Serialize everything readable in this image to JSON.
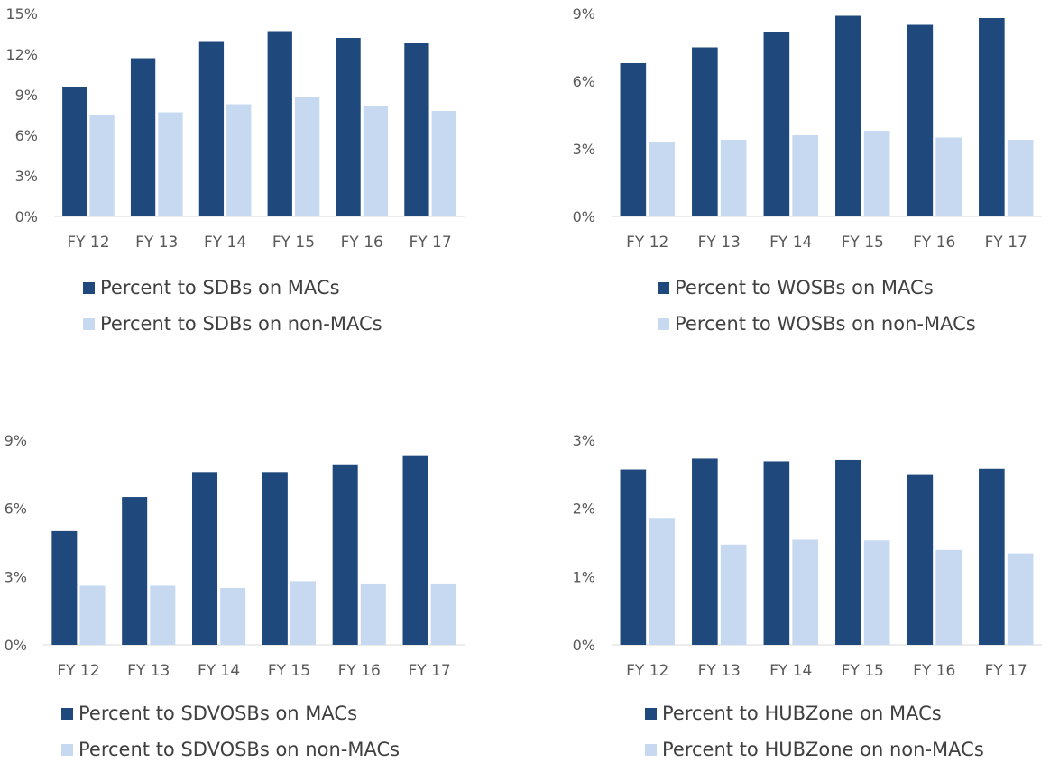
{
  "colors": {
    "macs": "#1f497d",
    "non_macs": "#c6d9f1",
    "axis": "#d9d9d9"
  },
  "chart_data": [
    {
      "type": "bar",
      "categories": [
        "FY 12",
        "FY 13",
        "FY 14",
        "FY 15",
        "FY 16",
        "FY 17"
      ],
      "ylim": [
        0,
        15
      ],
      "yticks": [
        "0%",
        "3%",
        "6%",
        "9%",
        "12%",
        "15%"
      ],
      "series": [
        {
          "name": "Percent to SDBs on MACs",
          "values": [
            9.6,
            11.7,
            12.9,
            13.7,
            13.2,
            12.8
          ]
        },
        {
          "name": "Percent to SDBs on non-MACs",
          "values": [
            7.5,
            7.7,
            8.3,
            8.8,
            8.2,
            7.8
          ]
        }
      ],
      "title": "",
      "xlabel": "",
      "ylabel": "",
      "grid": false,
      "legend": "bottom"
    },
    {
      "type": "bar",
      "categories": [
        "FY 12",
        "FY 13",
        "FY 14",
        "FY 15",
        "FY 16",
        "FY 17"
      ],
      "ylim": [
        0,
        9
      ],
      "yticks": [
        "0%",
        "3%",
        "6%",
        "9%"
      ],
      "series": [
        {
          "name": "Percent to WOSBs on MACs",
          "values": [
            6.8,
            7.5,
            8.2,
            8.9,
            8.5,
            8.8
          ]
        },
        {
          "name": "Percent to WOSBs on non-MACs",
          "values": [
            3.3,
            3.4,
            3.6,
            3.8,
            3.5,
            3.4
          ]
        }
      ],
      "title": "",
      "xlabel": "",
      "ylabel": "",
      "grid": false,
      "legend": "bottom"
    },
    {
      "type": "bar",
      "categories": [
        "FY 12",
        "FY 13",
        "FY 14",
        "FY 15",
        "FY 16",
        "FY 17"
      ],
      "ylim": [
        0,
        9
      ],
      "yticks": [
        "0%",
        "3%",
        "6%",
        "9%"
      ],
      "series": [
        {
          "name": "Percent to SDVOSBs on MACs",
          "values": [
            5.0,
            6.5,
            7.6,
            7.6,
            7.9,
            8.3
          ]
        },
        {
          "name": "Percent to SDVOSBs on non-MACs",
          "values": [
            2.6,
            2.6,
            2.5,
            2.8,
            2.7,
            2.7
          ]
        }
      ],
      "title": "",
      "xlabel": "",
      "ylabel": "",
      "grid": false,
      "legend": "bottom"
    },
    {
      "type": "bar",
      "categories": [
        "FY 12",
        "FY 13",
        "FY 14",
        "FY 15",
        "FY 16",
        "FY 17"
      ],
      "ylim": [
        0,
        3
      ],
      "yticks": [
        "0%",
        "1%",
        "2%",
        "3%"
      ],
      "series": [
        {
          "name": "Percent to HUBZone on MACs",
          "values": [
            2.57,
            2.73,
            2.69,
            2.71,
            2.49,
            2.58
          ]
        },
        {
          "name": "Percent to HUBZone on non-MACs",
          "values": [
            1.86,
            1.47,
            1.54,
            1.53,
            1.39,
            1.34
          ]
        }
      ],
      "title": "",
      "xlabel": "",
      "ylabel": "",
      "grid": false,
      "legend": "bottom"
    }
  ]
}
